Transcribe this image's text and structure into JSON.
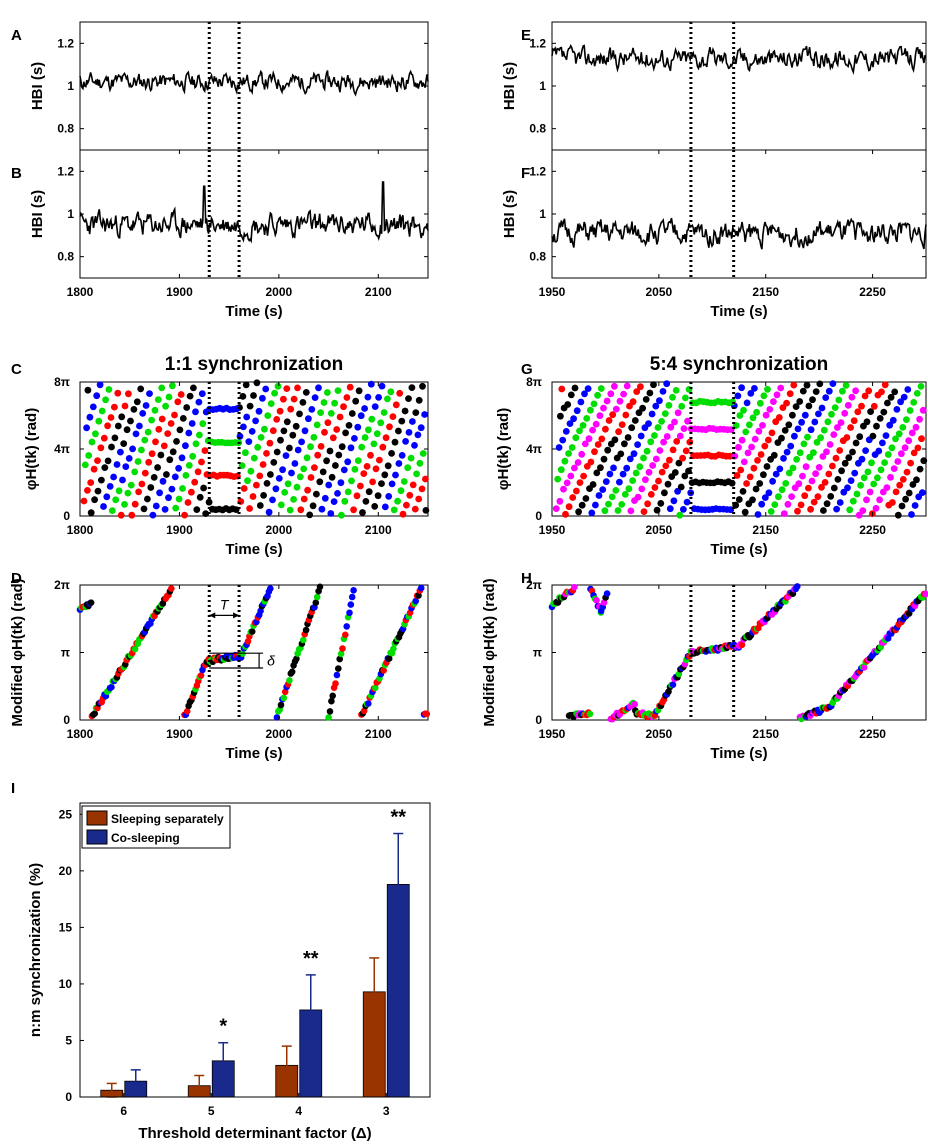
{
  "colors": {
    "sleeping_separately": "#993300",
    "co_sleeping": "#1a2a8c",
    "phase_palette_1to1": [
      "#ff0000",
      "#00dd00",
      "#0000ff",
      "#000000"
    ],
    "phase_palette_5to4": [
      "#ff00ff",
      "#00dd00",
      "#0000ff",
      "#000000",
      "#ff0000"
    ]
  },
  "chart_data": [
    {
      "panel": "A",
      "type": "line",
      "title": "",
      "xlabel": "",
      "ylabel": "HBI (s)",
      "xlim": [
        1800,
        2150
      ],
      "ylim": [
        0.7,
        1.3
      ],
      "yticks": [
        0.8,
        1,
        1.2
      ],
      "ytick_labels": [
        "0.8",
        "1",
        "1.2"
      ],
      "mean": 1.02,
      "sd": 0.03,
      "seed": 11,
      "markers_x": [
        1930,
        1960
      ]
    },
    {
      "panel": "B",
      "type": "line",
      "title": "",
      "xlabel": "Time (s)",
      "ylabel": "HBI (s)",
      "xlim": [
        1800,
        2150
      ],
      "ylim": [
        0.7,
        1.3
      ],
      "yticks": [
        0.8,
        1,
        1.2
      ],
      "ytick_labels": [
        "0.8",
        "1",
        "1.2"
      ],
      "xticks": [
        1800,
        1900,
        2000,
        2100
      ],
      "xtick_labels": [
        "1800",
        "1900",
        "2000",
        "2100"
      ],
      "mean": 0.95,
      "sd": 0.04,
      "seed": 23,
      "markers_x": [
        1930,
        1960
      ],
      "spikes": [
        {
          "x": 1925,
          "y": 1.13
        },
        {
          "x": 2105,
          "y": 1.15
        }
      ]
    },
    {
      "panel": "C",
      "type": "scatter",
      "title": "1:1 synchronization",
      "xlabel": "Time (s)",
      "ylabel": "φH(tk) (rad)",
      "xlim": [
        1800,
        2150
      ],
      "ylim": [
        0,
        8
      ],
      "yticks": [
        0,
        4,
        8
      ],
      "ytick_labels": [
        "0",
        "4π",
        "8π"
      ],
      "xticks": [
        1800,
        1900,
        2000,
        2100
      ],
      "xtick_labels": [
        "1800",
        "1900",
        "2000",
        "2100"
      ],
      "markers_x": [
        1930,
        1960
      ],
      "ratio": 1,
      "period_s": 42,
      "seed": 5
    },
    {
      "panel": "D",
      "type": "scatter",
      "title": "",
      "xlabel": "Time (s)",
      "ylabel": "Modified φH(tk) (rad)",
      "xlim": [
        1800,
        2150
      ],
      "ylim": [
        0,
        2
      ],
      "yticks": [
        0,
        1,
        2
      ],
      "ytick_labels": [
        "0",
        "π",
        "2π"
      ],
      "xticks": [
        1800,
        1900,
        2000,
        2100
      ],
      "xtick_labels": [
        "1800",
        "1900",
        "2000",
        "2100"
      ],
      "markers_x": [
        1930,
        1960
      ],
      "ratio": 1,
      "seed": 9,
      "annotation_T": "T",
      "annotation_delta": "δ",
      "segments": [
        {
          "x0": 1800,
          "x1": 1812,
          "y0": 1.65,
          "y1": 1.72
        },
        {
          "x0": 1812,
          "x1": 1893,
          "y0": 0.05,
          "y1": 1.97
        },
        {
          "x0": 1905,
          "x1": 1928,
          "y0": 0.05,
          "y1": 0.9
        },
        {
          "x0": 1928,
          "x1": 1962,
          "y0": 0.88,
          "y1": 0.95
        },
        {
          "x0": 1962,
          "x1": 1992,
          "y0": 0.95,
          "y1": 1.97
        },
        {
          "x0": 1998,
          "x1": 2042,
          "y0": 0.05,
          "y1": 1.97
        },
        {
          "x0": 2050,
          "x1": 2076,
          "y0": 0.05,
          "y1": 1.97
        },
        {
          "x0": 2083,
          "x1": 2144,
          "y0": 0.05,
          "y1": 1.97
        },
        {
          "x0": 2146,
          "x1": 2150,
          "y0": 0.1,
          "y1": 0.1
        }
      ]
    },
    {
      "panel": "E",
      "type": "line",
      "title": "",
      "xlabel": "",
      "ylabel": "HBI (s)",
      "xlim": [
        1950,
        2300
      ],
      "ylim": [
        0.7,
        1.3
      ],
      "yticks": [
        0.8,
        1,
        1.2
      ],
      "ytick_labels": [
        "0.8",
        "1",
        "1.2"
      ],
      "mean": 1.13,
      "sd": 0.035,
      "seed": 37,
      "markers_x": [
        2080,
        2120
      ]
    },
    {
      "panel": "F",
      "type": "line",
      "title": "",
      "xlabel": "Time (s)",
      "ylabel": "HBI (s)",
      "xlim": [
        1950,
        2300
      ],
      "ylim": [
        0.7,
        1.3
      ],
      "yticks": [
        0.8,
        1,
        1.2
      ],
      "ytick_labels": [
        "0.8",
        "1",
        "1.2"
      ],
      "xticks": [
        1950,
        2050,
        2150,
        2250
      ],
      "xtick_labels": [
        "1950",
        "2050",
        "2150",
        "2250"
      ],
      "mean": 0.91,
      "sd": 0.04,
      "seed": 51,
      "markers_x": [
        2080,
        2120
      ]
    },
    {
      "panel": "G",
      "type": "scatter",
      "title": "5:4 synchronization",
      "xlabel": "Time (s)",
      "ylabel": "φH(tk) (rad)",
      "xlim": [
        1950,
        2300
      ],
      "ylim": [
        0,
        8
      ],
      "yticks": [
        0,
        4,
        8
      ],
      "ytick_labels": [
        "0",
        "4π",
        "8π"
      ],
      "xticks": [
        1950,
        2050,
        2150,
        2250
      ],
      "xtick_labels": [
        "1950",
        "2050",
        "2150",
        "2250"
      ],
      "markers_x": [
        2080,
        2120
      ],
      "ratio": 5,
      "period_s": 60,
      "seed": 71
    },
    {
      "panel": "H",
      "type": "scatter",
      "title": "",
      "xlabel": "Time (s)",
      "ylabel": "Modified φH(tk) (rad)",
      "xlim": [
        1950,
        2300
      ],
      "ylim": [
        0,
        2
      ],
      "yticks": [
        0,
        1,
        2
      ],
      "ytick_labels": [
        "0",
        "π",
        "2π"
      ],
      "xticks": [
        1950,
        2050,
        2150,
        2250
      ],
      "xtick_labels": [
        "1950",
        "2050",
        "2150",
        "2250"
      ],
      "markers_x": [
        2080,
        2120
      ],
      "ratio": 5,
      "seed": 83,
      "segments": [
        {
          "x0": 1950,
          "x1": 1972,
          "y0": 1.7,
          "y1": 1.97
        },
        {
          "x0": 1986,
          "x1": 1996,
          "y0": 1.97,
          "y1": 1.6
        },
        {
          "x0": 1996,
          "x1": 2003,
          "y0": 1.6,
          "y1": 1.95
        },
        {
          "x0": 1966,
          "x1": 1986,
          "y0": 0.05,
          "y1": 0.1
        },
        {
          "x0": 2005,
          "x1": 2028,
          "y0": 0.02,
          "y1": 0.25
        },
        {
          "x0": 2028,
          "x1": 2045,
          "y0": 0.12,
          "y1": 0.05
        },
        {
          "x0": 2045,
          "x1": 2080,
          "y0": 0.05,
          "y1": 1.0
        },
        {
          "x0": 2080,
          "x1": 2125,
          "y0": 1.0,
          "y1": 1.1
        },
        {
          "x0": 2125,
          "x1": 2180,
          "y0": 1.1,
          "y1": 1.97
        },
        {
          "x0": 2182,
          "x1": 2210,
          "y0": 0.02,
          "y1": 0.2
        },
        {
          "x0": 2210,
          "x1": 2300,
          "y0": 0.2,
          "y1": 1.9
        }
      ]
    },
    {
      "panel": "I",
      "type": "bar",
      "title": "",
      "xlabel": "Threshold determinant factor (Δ)",
      "ylabel": "n:m synchronization (%)",
      "categories": [
        "6",
        "5",
        "4",
        "3"
      ],
      "ylim": [
        0,
        26
      ],
      "yticks": [
        0,
        5,
        10,
        15,
        20,
        25
      ],
      "ytick_labels": [
        "0",
        "5",
        "10",
        "15",
        "20",
        "25"
      ],
      "legend_position": "top-left",
      "series": [
        {
          "name": "Sleeping separately",
          "values": [
            0.6,
            1.0,
            2.8,
            9.3
          ],
          "errors": [
            0.6,
            0.9,
            1.7,
            3.0
          ]
        },
        {
          "name": "Co-sleeping",
          "values": [
            1.4,
            3.2,
            7.7,
            18.8
          ],
          "errors": [
            1.0,
            1.6,
            3.1,
            4.5
          ]
        }
      ],
      "significance": [
        "",
        "*",
        "**",
        "**"
      ]
    }
  ]
}
